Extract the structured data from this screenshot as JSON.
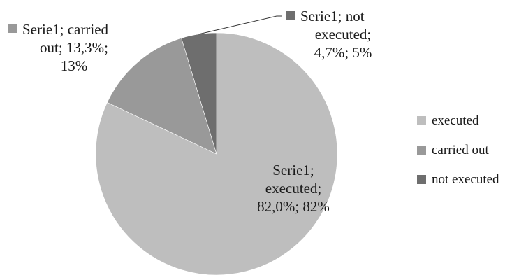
{
  "chart_data": {
    "type": "pie",
    "series": [
      {
        "name": "Serie1",
        "slices": [
          {
            "category": "executed",
            "value": 82.0,
            "percent_label": "82,0%",
            "rounded_label": "82%",
            "color": "#bebebe"
          },
          {
            "category": "carried out",
            "value": 13.3,
            "percent_label": "13,3%",
            "rounded_label": "13%",
            "color": "#999999"
          },
          {
            "category": "not executed",
            "value": 4.7,
            "percent_label": "4,7%",
            "rounded_label": "5%",
            "color": "#6e6e6e"
          }
        ]
      }
    ],
    "data_labels": [
      {
        "category": "executed",
        "lines": [
          "Serie1;",
          "executed;",
          "82,0%; 82%"
        ]
      },
      {
        "category": "carried out",
        "lines": [
          "Serie1; carried",
          "out; 13,3%;",
          "13%"
        ]
      },
      {
        "category": "not executed",
        "lines": [
          "Serie1; not",
          "executed;",
          "4,7%; 5%"
        ]
      }
    ],
    "legend": {
      "placement": "right",
      "entries": [
        "executed",
        "carried out",
        "not executed"
      ]
    }
  }
}
